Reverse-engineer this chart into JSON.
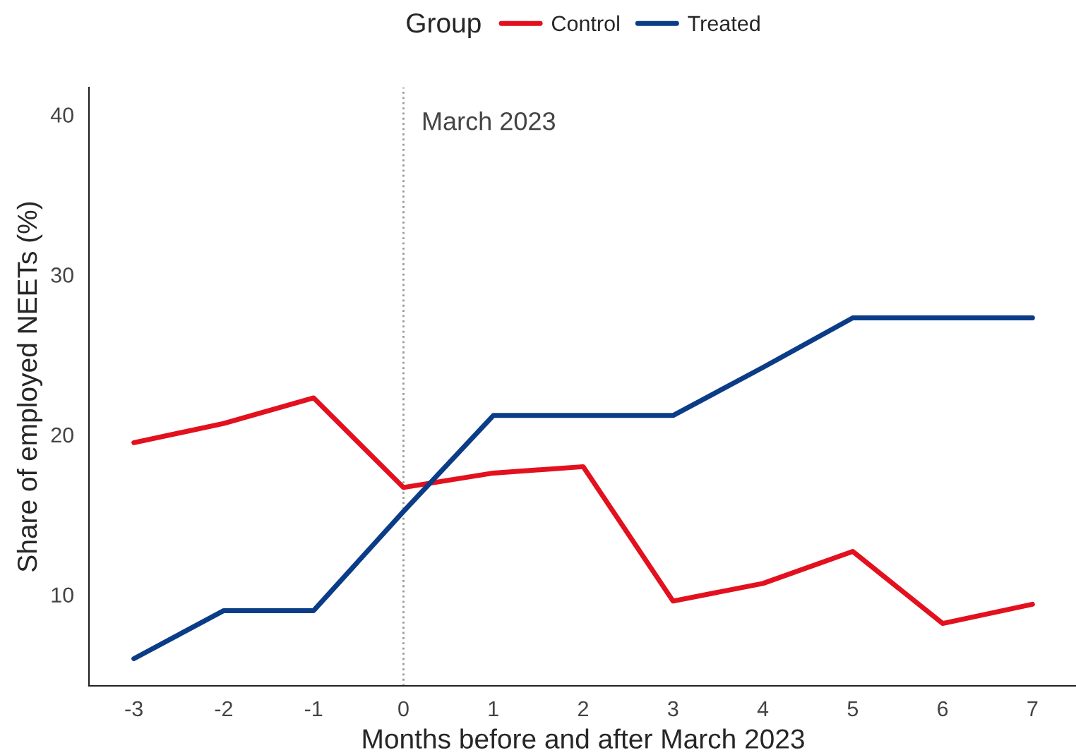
{
  "chart_data": {
    "type": "line",
    "xlabel": "Months before and after March 2023",
    "ylabel": "Share of employed NEETs (%)",
    "legend_title": "Group",
    "legend": "top",
    "x": [
      -3,
      -2,
      -1,
      0,
      1,
      2,
      3,
      4,
      5,
      6,
      7
    ],
    "series": [
      {
        "name": "Control",
        "color": "#e3101e",
        "values": [
          19.5,
          20.7,
          22.3,
          16.7,
          17.6,
          18.0,
          9.6,
          10.7,
          12.7,
          8.2,
          9.4
        ]
      },
      {
        "name": "Treated",
        "color": "#0b3c87",
        "values": [
          6.0,
          9.0,
          9.0,
          15.2,
          21.2,
          21.2,
          21.2,
          24.2,
          27.3,
          27.3,
          27.3
        ]
      }
    ],
    "xlim": [
      -3.5,
      7.5
    ],
    "xticks": [
      -3,
      -2,
      -1,
      0,
      1,
      2,
      3,
      4,
      5,
      6,
      7
    ],
    "ylim": [
      4.3,
      41.7
    ],
    "yticks": [
      10,
      20,
      30,
      40
    ],
    "ref_lines": [
      {
        "axis": "x",
        "value": 0,
        "label": "March 2023",
        "color": "#999999",
        "line_style": "dotted"
      }
    ],
    "grid": false,
    "line_style": "solid"
  }
}
